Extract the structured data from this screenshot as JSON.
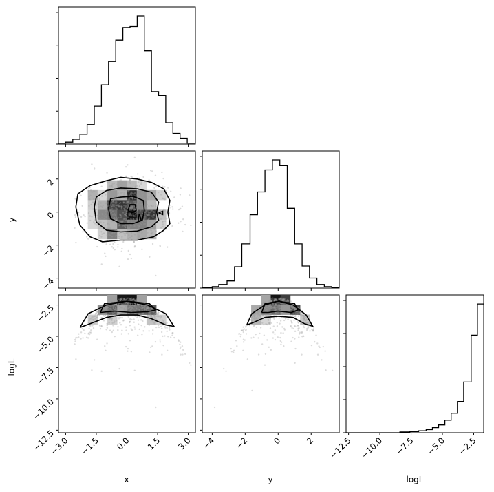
{
  "chart_data": {
    "type": "corner",
    "parameters": [
      "x",
      "y",
      "logL"
    ],
    "axis_labels": {
      "x": "x",
      "y": "y",
      "logL": "logL"
    },
    "ranges": {
      "x": [
        -3.35,
        3.35
      ],
      "y": [
        -4.6,
        3.7
      ],
      "logL": [
        -12.7,
        -1.7
      ]
    },
    "ticks": {
      "x": {
        "values": [
          -3.0,
          -1.5,
          0.0,
          1.5,
          3.0
        ],
        "labels": [
          "−3.0",
          "−1.5",
          "0.0",
          "1.5",
          "3.0"
        ]
      },
      "y": {
        "values": [
          -4,
          -2,
          0,
          2
        ],
        "labels": [
          "−4",
          "−2",
          "0",
          "2"
        ]
      },
      "logL": {
        "values": [
          -12.5,
          -10.0,
          -7.5,
          -5.0,
          -2.5
        ],
        "labels": [
          "−12.5",
          "−10.0",
          "−7.5",
          "−5.0",
          "−2.5"
        ]
      }
    },
    "histograms": {
      "x": {
        "bin_edges": [
          -3.35,
          -3.0,
          -2.65,
          -2.3,
          -1.95,
          -1.6,
          -1.25,
          -0.9,
          -0.55,
          -0.2,
          0.15,
          0.5,
          0.85,
          1.2,
          1.55,
          1.9,
          2.25,
          2.6,
          2.95,
          3.35
        ],
        "counts": [
          1,
          2,
          5,
          10,
          20,
          39,
          61,
          85,
          107,
          120,
          121,
          132,
          96,
          54,
          50,
          22,
          11,
          6,
          1
        ]
      },
      "y": {
        "bin_edges": [
          -4.6,
          -4.0,
          -3.6,
          -3.1,
          -2.65,
          -2.2,
          -1.7,
          -1.25,
          -0.8,
          -0.35,
          0.1,
          0.55,
          1.0,
          1.45,
          1.9,
          2.35,
          2.8,
          3.25,
          3.7
        ],
        "counts": [
          1,
          2,
          5,
          10,
          30,
          62,
          103,
          135,
          166,
          180,
          172,
          112,
          62,
          31,
          14,
          5,
          2,
          1
        ]
      },
      "logL": {
        "bin_edges": [
          -12.7,
          -8.4,
          -7.6,
          -6.9,
          -6.3,
          -5.8,
          -5.3,
          -4.8,
          -4.3,
          -3.8,
          -3.3,
          -2.7,
          -2.2,
          -1.7
        ],
        "counts": [
          0,
          2,
          3,
          5,
          8,
          13,
          20,
          32,
          50,
          80,
          130,
          250,
          330
        ]
      }
    },
    "density_contours": {
      "y_vs_x": [
        [
          [
            -2.5,
            0.3
          ],
          [
            -2.4,
            1.1
          ],
          [
            -1.8,
            1.6
          ],
          [
            -1.0,
            1.9
          ],
          [
            -0.3,
            2.1
          ],
          [
            0.5,
            2.0
          ],
          [
            1.2,
            1.8
          ],
          [
            1.8,
            1.4
          ],
          [
            2.1,
            0.7
          ],
          [
            2.0,
            0.0
          ],
          [
            2.1,
            -0.7
          ],
          [
            1.8,
            -1.1
          ],
          [
            1.3,
            -1.5
          ],
          [
            0.5,
            -1.7
          ],
          [
            -0.3,
            -1.7
          ],
          [
            -1.2,
            -1.8
          ],
          [
            -1.8,
            -1.5
          ],
          [
            -2.3,
            -0.8
          ],
          [
            -2.5,
            0.3
          ]
        ],
        [
          [
            -1.6,
            0.3
          ],
          [
            -1.5,
            0.9
          ],
          [
            -1.0,
            1.3
          ],
          [
            -0.3,
            1.45
          ],
          [
            0.5,
            1.4
          ],
          [
            1.2,
            1.2
          ],
          [
            1.55,
            0.6
          ],
          [
            1.45,
            0.0
          ],
          [
            1.55,
            -0.5
          ],
          [
            1.2,
            -0.9
          ],
          [
            0.5,
            -1.15
          ],
          [
            -0.3,
            -1.2
          ],
          [
            -1.0,
            -1.1
          ],
          [
            -1.5,
            -0.6
          ],
          [
            -1.6,
            0.3
          ]
        ],
        [
          [
            -0.9,
            0.2
          ],
          [
            -0.8,
            0.8
          ],
          [
            -0.3,
            0.9
          ],
          [
            0.3,
            0.95
          ],
          [
            0.8,
            0.7
          ],
          [
            0.85,
            0.1
          ],
          [
            0.75,
            -0.5
          ],
          [
            0.3,
            -0.7
          ],
          [
            -0.3,
            -0.7
          ],
          [
            -0.8,
            -0.4
          ],
          [
            -0.9,
            0.2
          ]
        ],
        [
          [
            0.05,
            0.1
          ],
          [
            0.15,
            0.45
          ],
          [
            0.4,
            0.45
          ],
          [
            0.45,
            0.1
          ],
          [
            0.25,
            -0.05
          ],
          [
            0.05,
            0.1
          ]
        ],
        [
          [
            0.6,
            -0.1
          ],
          [
            0.7,
            -0.5
          ],
          [
            0.55,
            -0.55
          ],
          [
            0.6,
            -0.1
          ]
        ],
        [
          [
            1.55,
            -0.05
          ],
          [
            1.75,
            0.05
          ],
          [
            1.75,
            -0.15
          ],
          [
            1.55,
            -0.05
          ]
        ]
      ],
      "logL_vs_x": [
        [
          [
            -2.3,
            -4.3
          ],
          [
            -1.9,
            -3.2
          ],
          [
            -1.0,
            -2.5
          ],
          [
            0.0,
            -2.2
          ],
          [
            1.0,
            -2.5
          ],
          [
            1.9,
            -3.2
          ],
          [
            2.3,
            -4.2
          ],
          [
            1.9,
            -4.1
          ],
          [
            1.2,
            -3.6
          ],
          [
            0.5,
            -3.3
          ],
          [
            -0.3,
            -3.3
          ],
          [
            -1.0,
            -3.5
          ],
          [
            -1.8,
            -4.0
          ],
          [
            -2.3,
            -4.3
          ]
        ],
        [
          [
            -1.3,
            -3.1
          ],
          [
            -1.1,
            -2.4
          ],
          [
            0.0,
            -2.2
          ],
          [
            1.1,
            -2.4
          ],
          [
            1.4,
            -2.9
          ],
          [
            1.0,
            -3.05
          ],
          [
            0.2,
            -3.1
          ],
          [
            -0.6,
            -3.0
          ],
          [
            -1.3,
            -3.1
          ]
        ]
      ],
      "logL_vs_y": [
        [
          [
            -1.9,
            -4.1
          ],
          [
            -1.6,
            -3.2
          ],
          [
            -0.8,
            -2.5
          ],
          [
            0.0,
            -2.2
          ],
          [
            0.9,
            -2.5
          ],
          [
            1.7,
            -3.3
          ],
          [
            2.1,
            -4.2
          ],
          [
            1.6,
            -4.0
          ],
          [
            0.9,
            -3.5
          ],
          [
            0.0,
            -3.4
          ],
          [
            -0.8,
            -3.5
          ],
          [
            -1.5,
            -3.9
          ],
          [
            -1.9,
            -4.1
          ]
        ],
        [
          [
            -1.0,
            -3.1
          ],
          [
            -0.8,
            -2.4
          ],
          [
            0.0,
            -2.2
          ],
          [
            1.0,
            -2.4
          ],
          [
            1.2,
            -2.9
          ],
          [
            0.8,
            -3.1
          ],
          [
            0.0,
            -3.0
          ],
          [
            -0.6,
            -3.1
          ],
          [
            -1.0,
            -3.1
          ]
        ]
      ]
    },
    "grid": false,
    "legend": "none"
  }
}
